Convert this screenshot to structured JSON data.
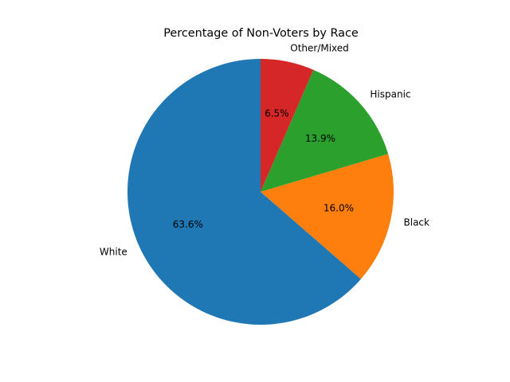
{
  "chart_data": {
    "type": "pie",
    "title": "Percentage of Non-Voters by Race",
    "categories": [
      "White",
      "Black",
      "Hispanic",
      "Other/Mixed"
    ],
    "values": [
      63.6,
      16.0,
      13.9,
      6.5
    ],
    "value_labels": [
      "63.6%",
      "16.0%",
      "13.9%",
      "6.5%"
    ],
    "colors": [
      "#1f77b4",
      "#ff7f0e",
      "#2ca02c",
      "#d62728"
    ],
    "start_angle_deg": 90,
    "direction": "counterclockwise",
    "legend": "none"
  }
}
